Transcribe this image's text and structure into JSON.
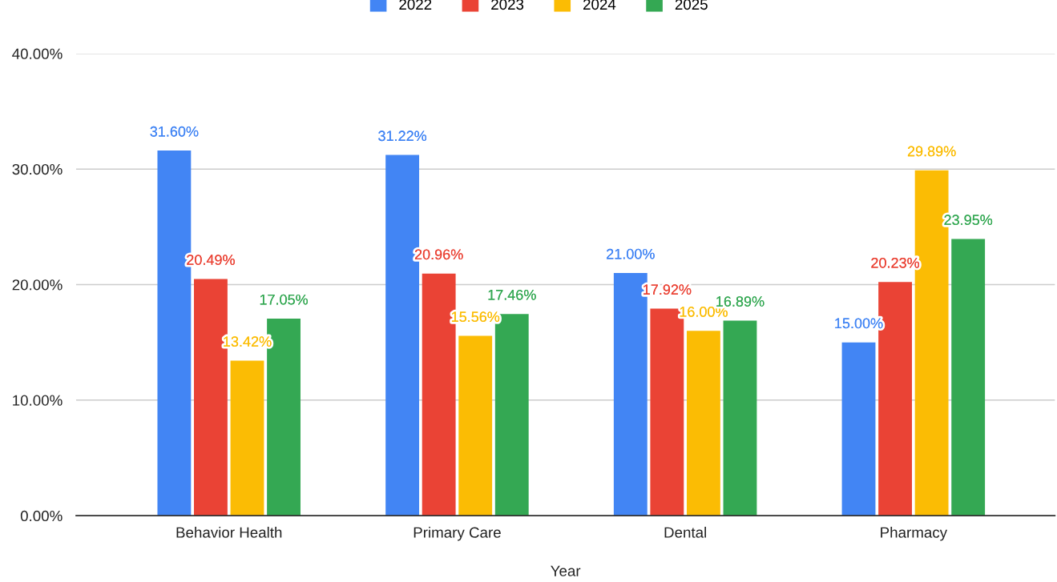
{
  "chart_data": {
    "type": "bar",
    "xlabel": "Year",
    "categories": [
      "Behavior Health",
      "Primary Care",
      "Dental",
      "Pharmacy"
    ],
    "series": [
      {
        "name": "2022",
        "color": "#4285f4",
        "values": [
          31.6,
          31.22,
          21.0,
          15.0
        ],
        "value_labels": [
          "31.60%",
          "31.22%",
          "21.00%",
          "15.00%"
        ]
      },
      {
        "name": "2023",
        "color": "#ea4335",
        "values": [
          20.49,
          20.96,
          17.92,
          20.23
        ],
        "value_labels": [
          "20.49%",
          "20.96%",
          "17.92%",
          "20.23%"
        ]
      },
      {
        "name": "2024",
        "color": "#fbbc04",
        "values": [
          13.42,
          15.56,
          16.0,
          29.89
        ],
        "value_labels": [
          "13.42%",
          "15.56%",
          "16.00%",
          "29.89%"
        ]
      },
      {
        "name": "2025",
        "color": "#34a853",
        "values": [
          17.05,
          17.46,
          16.89,
          23.95
        ],
        "value_labels": [
          "17.05%",
          "17.46%",
          "16.89%",
          "23.95%"
        ]
      }
    ],
    "ylim": [
      0,
      40
    ],
    "yticks": [
      {
        "value": 0,
        "label": "0.00%"
      },
      {
        "value": 10,
        "label": "10.00%"
      },
      {
        "value": 20,
        "label": "20.00%"
      },
      {
        "value": 30,
        "label": "30.00%"
      },
      {
        "value": 40,
        "label": "40.00%"
      }
    ],
    "grid": "y",
    "legend": "top"
  }
}
